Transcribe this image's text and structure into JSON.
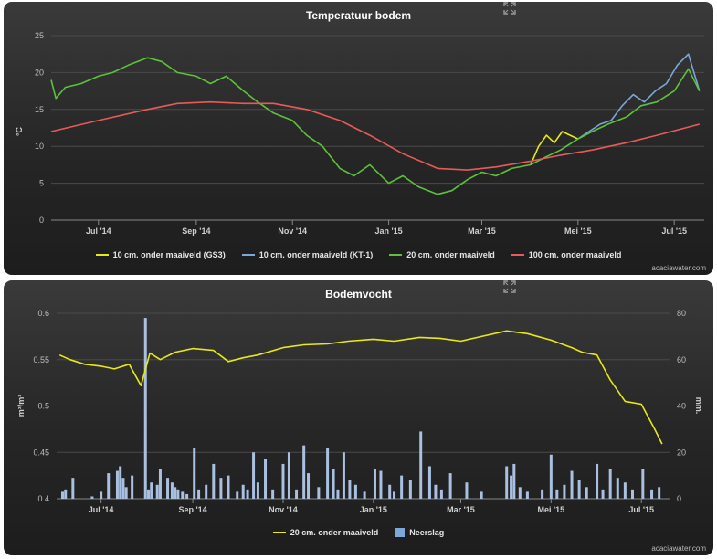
{
  "chart_data": [
    {
      "type": "line",
      "title": "Temperatuur bodem",
      "ylabel": "°C",
      "ylim": [
        0,
        25
      ],
      "yticks": [
        0,
        5,
        10,
        15,
        20,
        25
      ],
      "xlim": [
        "2014-06-01",
        "2015-07-20"
      ],
      "xticks": [
        {
          "date": "2014-07-01",
          "label": "Jul '14"
        },
        {
          "date": "2014-09-01",
          "label": "Sep '14"
        },
        {
          "date": "2014-11-01",
          "label": "Nov '14"
        },
        {
          "date": "2015-01-01",
          "label": "Jan '15"
        },
        {
          "date": "2015-03-01",
          "label": "Mar '15"
        },
        {
          "date": "2015-05-01",
          "label": "Mei '15"
        },
        {
          "date": "2015-07-01",
          "label": "Jul '15"
        }
      ],
      "grid": true,
      "legend_position": "bottom",
      "credit": "acaciawater.com",
      "series": [
        {
          "name": "10 cm. onder maaiveld (GS3)",
          "color": "#e8e817",
          "x": [
            "2015-04-01",
            "2015-04-06",
            "2015-04-11",
            "2015-04-16",
            "2015-04-21",
            "2015-04-26",
            "2015-05-01"
          ],
          "y": [
            7.5,
            10,
            11.5,
            10.5,
            12,
            11.5,
            11
          ]
        },
        {
          "name": "10 cm. onder maaiveld (KT-1)",
          "color": "#7ba7d9",
          "x": [
            "2015-05-01",
            "2015-05-08",
            "2015-05-15",
            "2015-05-22",
            "2015-05-29",
            "2015-06-05",
            "2015-06-12",
            "2015-06-19",
            "2015-06-26",
            "2015-07-03",
            "2015-07-10",
            "2015-07-17"
          ],
          "y": [
            11,
            12,
            13,
            13.5,
            15.5,
            17,
            16,
            17.5,
            18.5,
            21,
            22.5,
            17.5
          ]
        },
        {
          "name": "20 cm. onder maaiveld",
          "color": "#5cc23b",
          "x": [
            "2014-06-01",
            "2014-06-04",
            "2014-06-10",
            "2014-06-20",
            "2014-07-01",
            "2014-07-10",
            "2014-07-20",
            "2014-08-01",
            "2014-08-10",
            "2014-08-20",
            "2014-09-01",
            "2014-09-10",
            "2014-09-20",
            "2014-10-01",
            "2014-10-10",
            "2014-10-20",
            "2014-11-01",
            "2014-11-10",
            "2014-11-20",
            "2014-12-01",
            "2014-12-10",
            "2014-12-20",
            "2015-01-01",
            "2015-01-10",
            "2015-01-20",
            "2015-02-01",
            "2015-02-10",
            "2015-02-20",
            "2015-03-01",
            "2015-03-10",
            "2015-03-20",
            "2015-04-01",
            "2015-04-10",
            "2015-04-20",
            "2015-05-01",
            "2015-05-10",
            "2015-05-20",
            "2015-06-01",
            "2015-06-10",
            "2015-06-20",
            "2015-07-01",
            "2015-07-10",
            "2015-07-17"
          ],
          "y": [
            19,
            16.5,
            18,
            18.5,
            19.5,
            20,
            21,
            22,
            21.5,
            20,
            19.5,
            18.5,
            19.5,
            17.5,
            16,
            14.5,
            13.5,
            11.5,
            10,
            7,
            6,
            7.5,
            5,
            6,
            4.5,
            3.5,
            4,
            5.5,
            6.5,
            6,
            7,
            7.5,
            8.5,
            9.5,
            11,
            12,
            13,
            14,
            15.5,
            16,
            17.5,
            20.5,
            17.5
          ]
        },
        {
          "name": "100 cm. onder maaiveld",
          "color": "#e85a5a",
          "x": [
            "2014-06-01",
            "2014-07-01",
            "2014-08-01",
            "2014-08-20",
            "2014-09-10",
            "2014-10-01",
            "2014-10-20",
            "2014-11-10",
            "2014-12-01",
            "2014-12-20",
            "2015-01-10",
            "2015-02-01",
            "2015-02-20",
            "2015-03-10",
            "2015-04-01",
            "2015-04-20",
            "2015-05-10",
            "2015-06-01",
            "2015-06-20",
            "2015-07-17"
          ],
          "y": [
            12,
            13.5,
            15,
            15.8,
            16,
            15.8,
            15.8,
            15,
            13.5,
            11.5,
            9,
            7,
            6.8,
            7.2,
            8,
            8.8,
            9.5,
            10.5,
            11.5,
            13
          ]
        }
      ]
    },
    {
      "type": "line",
      "title": "Bodemvocht",
      "ylabel": "m³/m³",
      "y2label": "mm.",
      "ylim": [
        0.4,
        0.6
      ],
      "yticks": [
        0.4,
        0.45,
        0.5,
        0.55,
        0.6
      ],
      "y2lim": [
        0,
        80
      ],
      "y2ticks": [
        0,
        20,
        40,
        60,
        80
      ],
      "xlim": [
        "2014-06-01",
        "2015-07-20"
      ],
      "xticks": [
        {
          "date": "2014-07-01",
          "label": "Jul '14"
        },
        {
          "date": "2014-09-01",
          "label": "Sep '14"
        },
        {
          "date": "2014-11-01",
          "label": "Nov '14"
        },
        {
          "date": "2015-01-01",
          "label": "Jan '15"
        },
        {
          "date": "2015-03-01",
          "label": "Mar '15"
        },
        {
          "date": "2015-05-01",
          "label": "Mei '15"
        },
        {
          "date": "2015-07-01",
          "label": "Jul '15"
        }
      ],
      "grid": true,
      "legend_position": "bottom",
      "credit": "acaciawater.com",
      "series": [
        {
          "name": "20 cm. onder maaiveld",
          "color": "#e8e817",
          "axis": "left",
          "x": [
            "2014-06-03",
            "2014-06-10",
            "2014-06-20",
            "2014-07-01",
            "2014-07-10",
            "2014-07-20",
            "2014-07-28",
            "2014-08-03",
            "2014-08-10",
            "2014-08-20",
            "2014-09-01",
            "2014-09-15",
            "2014-09-25",
            "2014-10-05",
            "2014-10-15",
            "2014-11-01",
            "2014-11-15",
            "2014-12-01",
            "2014-12-15",
            "2015-01-01",
            "2015-01-15",
            "2015-02-01",
            "2015-02-15",
            "2015-03-01",
            "2015-03-15",
            "2015-04-01",
            "2015-04-15",
            "2015-05-01",
            "2015-05-15",
            "2015-05-22",
            "2015-06-01",
            "2015-06-10",
            "2015-06-20",
            "2015-07-01",
            "2015-07-10",
            "2015-07-15"
          ],
          "y": [
            0.555,
            0.55,
            0.545,
            0.543,
            0.54,
            0.545,
            0.522,
            0.557,
            0.55,
            0.558,
            0.562,
            0.56,
            0.548,
            0.552,
            0.555,
            0.563,
            0.566,
            0.567,
            0.57,
            0.572,
            0.57,
            0.574,
            0.573,
            0.57,
            0.575,
            0.581,
            0.578,
            0.571,
            0.563,
            0.558,
            0.555,
            0.528,
            0.505,
            0.502,
            0.475,
            0.459
          ]
        },
        {
          "name": "Neerslag",
          "type": "bar",
          "color": "#a9c0e0",
          "axis": "right",
          "x": [
            "2014-06-05",
            "2014-06-07",
            "2014-06-12",
            "2014-06-25",
            "2014-07-01",
            "2014-07-06",
            "2014-07-12",
            "2014-07-14",
            "2014-07-16",
            "2014-07-18",
            "2014-07-22",
            "2014-07-31",
            "2014-08-02",
            "2014-08-04",
            "2014-08-08",
            "2014-08-10",
            "2014-08-15",
            "2014-08-18",
            "2014-08-20",
            "2014-08-22",
            "2014-08-25",
            "2014-08-28",
            "2014-09-02",
            "2014-09-05",
            "2014-09-10",
            "2014-09-15",
            "2014-09-20",
            "2014-09-25",
            "2014-10-01",
            "2014-10-05",
            "2014-10-08",
            "2014-10-12",
            "2014-10-15",
            "2014-10-20",
            "2014-10-25",
            "2014-11-01",
            "2014-11-05",
            "2014-11-10",
            "2014-11-15",
            "2014-11-18",
            "2014-11-25",
            "2014-12-01",
            "2014-12-05",
            "2014-12-08",
            "2014-12-12",
            "2014-12-16",
            "2014-12-20",
            "2014-12-26",
            "2015-01-02",
            "2015-01-06",
            "2015-01-12",
            "2015-01-15",
            "2015-01-20",
            "2015-01-26",
            "2015-02-02",
            "2015-02-08",
            "2015-02-12",
            "2015-02-16",
            "2015-02-22",
            "2015-03-05",
            "2015-03-15",
            "2015-04-01",
            "2015-04-04",
            "2015-04-06",
            "2015-04-10",
            "2015-04-15",
            "2015-04-25",
            "2015-05-01",
            "2015-05-05",
            "2015-05-10",
            "2015-05-15",
            "2015-05-20",
            "2015-05-25",
            "2015-06-01",
            "2015-06-05",
            "2015-06-10",
            "2015-06-15",
            "2015-06-20",
            "2015-06-25",
            "2015-07-02",
            "2015-07-08",
            "2015-07-13"
          ],
          "y": [
            3,
            4,
            9,
            1,
            3,
            11,
            12,
            14,
            9,
            5,
            10,
            78,
            4,
            7,
            6,
            13,
            9,
            7,
            5,
            4,
            3,
            2,
            22,
            4,
            6,
            15,
            9,
            10,
            3,
            6,
            4,
            20,
            7,
            17,
            4,
            15,
            20,
            4,
            23,
            11,
            5,
            22,
            13,
            4,
            20,
            8,
            6,
            3,
            13,
            12,
            6,
            3,
            10,
            8,
            29,
            14,
            6,
            4,
            11,
            7,
            3,
            14,
            10,
            15,
            5,
            3,
            4,
            19,
            4,
            6,
            12,
            8,
            5,
            15,
            4,
            13,
            9,
            7,
            4,
            13,
            4,
            5
          ]
        }
      ]
    }
  ]
}
